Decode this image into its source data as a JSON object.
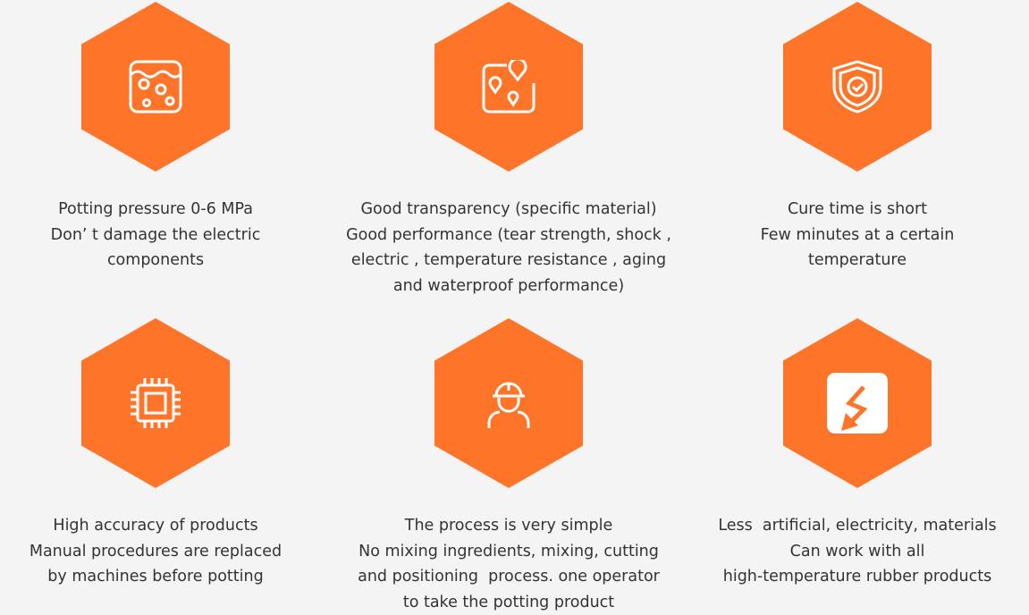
{
  "accent_color": "#fe7429",
  "features": [
    {
      "icon": "liquid-bubbles-icon",
      "lines": [
        "Potting pressure 0-6 MPa",
        "Don’ t damage the electric",
        "components"
      ]
    },
    {
      "icon": "map-pins-icon",
      "lines": [
        "Good transparency (specific material)",
        "Good performance (tear strength, shock ,",
        "electric , temperature resistance , aging",
        "and waterproof performance)"
      ]
    },
    {
      "icon": "shield-check-icon",
      "lines": [
        "Cure time is short",
        "Few minutes at a certain",
        "temperature"
      ]
    },
    {
      "icon": "chip-icon",
      "lines": [
        "High accuracy of products",
        "Manual procedures are replaced",
        "by machines before potting"
      ]
    },
    {
      "icon": "worker-helmet-icon",
      "lines": [
        "The process is very simple",
        "No mixing ingredients, mixing, cutting",
        "and positioning  process. one operator",
        "to take the potting product"
      ]
    },
    {
      "icon": "lightning-icon",
      "lines": [
        "Less  artificial, electricity, materials",
        "Can work with all",
        "high-temperature rubber products"
      ]
    }
  ]
}
